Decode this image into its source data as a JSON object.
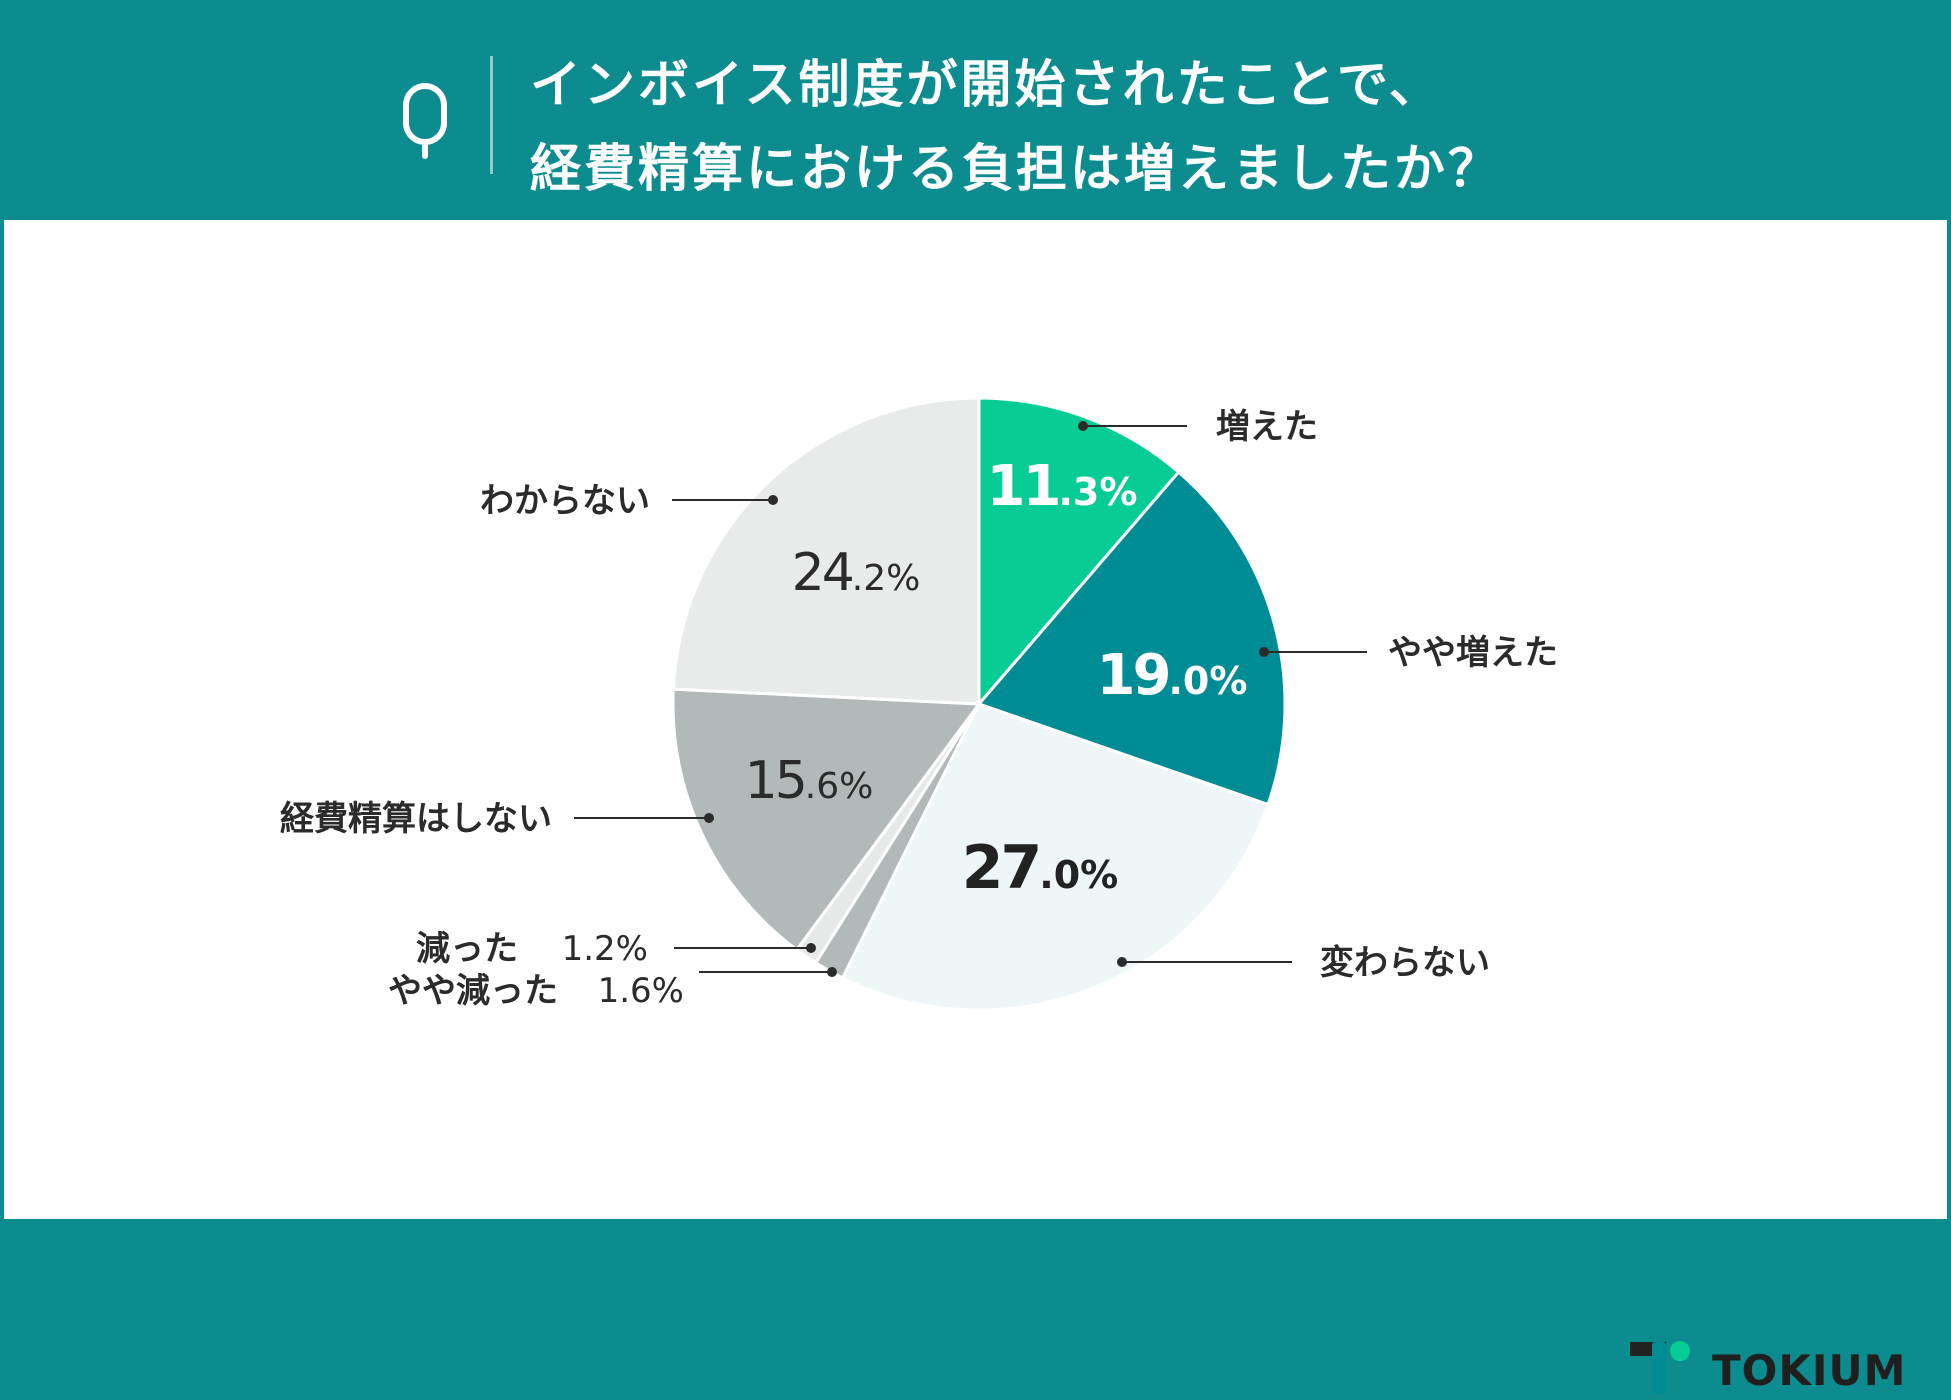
{
  "header": {
    "icon": "q-letter-icon",
    "title_line1": "インボイス制度が開始されたことで、",
    "title_line2": "経費精算における負担は増えましたか？"
  },
  "colors": {
    "header_bg": "#0d8c8f",
    "fueta": "#07cc96",
    "yaya_fueta": "#008c94",
    "kawaranai": "#eef6f7",
    "yaya_hetta": "#b3b8b8",
    "hetta": "#e7e9e9",
    "keihi_shinai": "#b3b8b8",
    "wakaranai": "#e9eaea"
  },
  "chart_data": {
    "type": "pie",
    "title": "インボイス制度が開始されたことで、経費精算における負担は増えましたか？",
    "slices": [
      {
        "label": "増えた",
        "value": 11.3,
        "display_int": "11",
        "display_dec": ".3%",
        "color": "#07cc96"
      },
      {
        "label": "やや増えた",
        "value": 19.0,
        "display_int": "19",
        "display_dec": ".0%",
        "color": "#008c94"
      },
      {
        "label": "変わらない",
        "value": 27.0,
        "display_int": "27",
        "display_dec": ".0%",
        "color": "#eef6f7"
      },
      {
        "label": "やや減った",
        "value": 1.6,
        "display": "1.6%",
        "color": "#b3b8b8"
      },
      {
        "label": "減った",
        "value": 1.2,
        "display": "1.2%",
        "color": "#e7e9e9"
      },
      {
        "label": "経費精算はしない",
        "value": 15.6,
        "display_int": "15",
        "display_dec": ".6%",
        "color": "#b3b8b8"
      },
      {
        "label": "わからない",
        "value": 24.2,
        "display_int": "24",
        "display_dec": ".2%",
        "color": "#e9eaea"
      }
    ]
  },
  "brand": {
    "name": "TOKIUM",
    "icon": "tokium-logo-icon"
  }
}
